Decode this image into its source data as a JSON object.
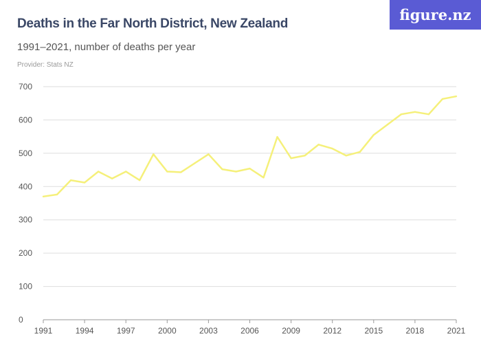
{
  "header": {
    "title": "Deaths in the Far North District, New Zealand",
    "subtitle": "1991–2021, number of deaths per year",
    "provider": "Provider: Stats NZ",
    "logo": "figure.nz"
  },
  "colors": {
    "line": "#f5f07a",
    "grid": "#dddddd",
    "logo_bg": "#5a5bd4",
    "title": "#3a4766"
  },
  "chart_data": {
    "type": "line",
    "title": "Deaths in the Far North District, New Zealand",
    "subtitle": "1991–2021, number of deaths per year",
    "x": [
      1991,
      1992,
      1993,
      1994,
      1995,
      1996,
      1997,
      1998,
      1999,
      2000,
      2001,
      2002,
      2003,
      2004,
      2005,
      2006,
      2007,
      2008,
      2009,
      2010,
      2011,
      2012,
      2013,
      2014,
      2015,
      2016,
      2017,
      2018,
      2019,
      2020,
      2021
    ],
    "values": [
      370,
      376,
      419,
      412,
      445,
      424,
      445,
      419,
      497,
      445,
      443,
      470,
      497,
      452,
      445,
      454,
      427,
      549,
      485,
      493,
      526,
      514,
      493,
      504,
      555,
      586,
      617,
      624,
      617,
      663,
      671
    ],
    "xticks": [
      "1991",
      "1994",
      "1997",
      "2000",
      "2003",
      "2006",
      "2009",
      "2012",
      "2015",
      "2018",
      "2021"
    ],
    "yticks": [
      "0",
      "100",
      "200",
      "300",
      "400",
      "500",
      "600",
      "700"
    ],
    "xlim": [
      1991,
      2021
    ],
    "ylim": [
      0,
      700
    ],
    "grid": true
  }
}
